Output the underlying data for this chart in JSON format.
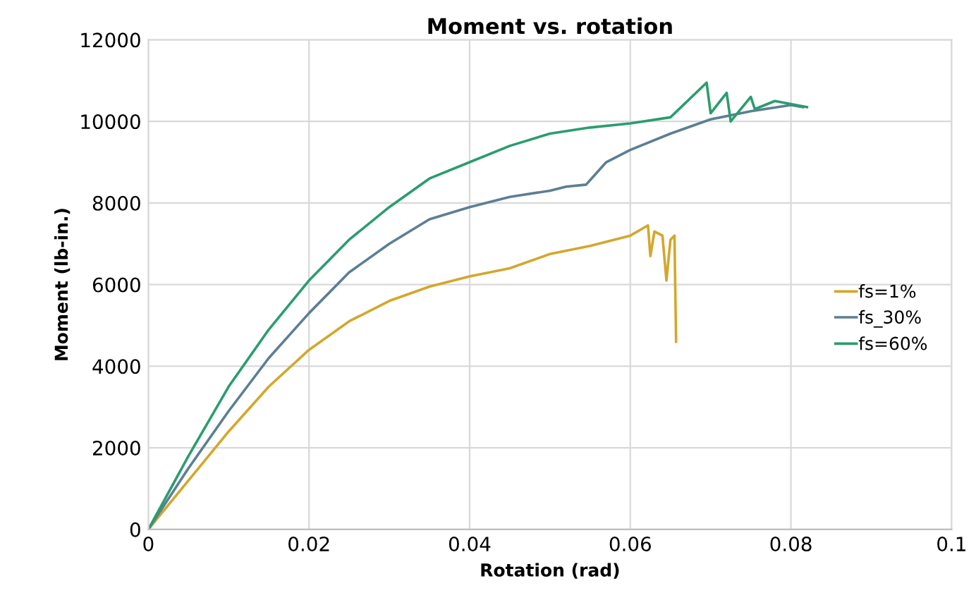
{
  "chart_data": {
    "type": "line",
    "title": "Moment vs. rotation",
    "xlabel": "Rotation (rad)",
    "ylabel": "Moment (lb-in.)",
    "xlim": [
      0,
      0.1
    ],
    "xticks": [
      0,
      0.02,
      0.04,
      0.06,
      0.08,
      0.1
    ],
    "ylim": [
      0,
      12000
    ],
    "yticks": [
      0,
      2000,
      4000,
      6000,
      8000,
      10000,
      12000
    ],
    "grid": true,
    "legend": "right",
    "marker": "none",
    "line_style": "solid",
    "series": [
      {
        "name": "fs=1%",
        "color": "#d4a72c",
        "x": [
          0,
          0.005,
          0.01,
          0.015,
          0.02,
          0.025,
          0.03,
          0.035,
          0.04,
          0.045,
          0.05,
          0.055,
          0.06,
          0.0622,
          0.0625,
          0.063,
          0.064,
          0.0645,
          0.065,
          0.0655,
          0.0657
        ],
        "values": [
          0,
          1200,
          2400,
          3500,
          4400,
          5100,
          5600,
          5950,
          6200,
          6400,
          6750,
          6950,
          7200,
          7450,
          6700,
          7300,
          7200,
          6100,
          7100,
          7200,
          4600
        ]
      },
      {
        "name": "fs_30%",
        "color": "#5b7f95",
        "x": [
          0,
          0.005,
          0.01,
          0.015,
          0.02,
          0.025,
          0.03,
          0.035,
          0.04,
          0.045,
          0.05,
          0.052,
          0.0545,
          0.057,
          0.06,
          0.065,
          0.07,
          0.075,
          0.08,
          0.0815
        ],
        "values": [
          0,
          1500,
          2900,
          4200,
          5300,
          6300,
          7000,
          7600,
          7900,
          8150,
          8300,
          8400,
          8450,
          9000,
          9300,
          9700,
          10050,
          10250,
          10400,
          10350
        ]
      },
      {
        "name": "fs=60%",
        "color": "#2a9d6e",
        "x": [
          0,
          0.005,
          0.01,
          0.015,
          0.02,
          0.025,
          0.03,
          0.035,
          0.04,
          0.045,
          0.05,
          0.055,
          0.06,
          0.065,
          0.0695,
          0.07,
          0.072,
          0.0725,
          0.075,
          0.0755,
          0.078,
          0.082
        ],
        "values": [
          0,
          1800,
          3500,
          4900,
          6100,
          7100,
          7900,
          8600,
          9000,
          9400,
          9700,
          9850,
          9950,
          10100,
          10950,
          10200,
          10700,
          10000,
          10600,
          10300,
          10500,
          10350
        ]
      }
    ]
  }
}
